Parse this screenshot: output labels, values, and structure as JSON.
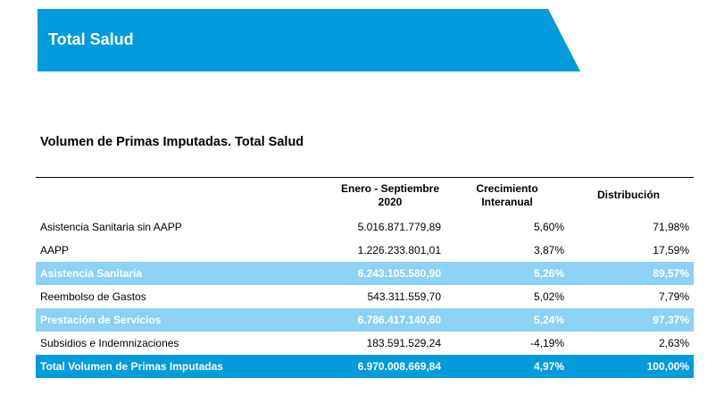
{
  "banner": {
    "title": "Total Salud",
    "color": "#009bdb"
  },
  "section_title": "Volumen de Primas Imputadas. Total Salud",
  "table": {
    "headers": {
      "period_line1": "Enero - Septiembre",
      "period_line2": "2020",
      "growth_line1": "Crecimiento",
      "growth_line2": "Interanual",
      "distribution": "Distribución"
    },
    "rows": [
      {
        "label": "Asistencia Sanitaria sin AAPP",
        "amount": "5.016.871.779,89",
        "growth": "5,60%",
        "distribution": "71,98%",
        "style": "normal"
      },
      {
        "label": "AAPP",
        "amount": "1.226.233.801,01",
        "growth": "3,87%",
        "distribution": "17,59%",
        "style": "normal"
      },
      {
        "label": "Asistencia Sanitaria",
        "amount": "6.243.105.580,90",
        "growth": "5,26%",
        "distribution": "89,57%",
        "style": "subtotal"
      },
      {
        "label": "Reembolso de Gastos",
        "amount": "543.311.559,70",
        "growth": "5,02%",
        "distribution": "7,79%",
        "style": "normal"
      },
      {
        "label": "Prestación de Servicios",
        "amount": "6.786.417.140,60",
        "growth": "5,24%",
        "distribution": "97,37%",
        "style": "subtotal"
      },
      {
        "label": "Subsidios e Indemnizaciones",
        "amount": "183.591.529,24",
        "growth": "-4,19%",
        "distribution": "2,63%",
        "style": "normal"
      },
      {
        "label": "Total Volumen de Primas Imputadas",
        "amount": "6.970.008.669,84",
        "growth": "4,97%",
        "distribution": "100,00%",
        "style": "total"
      }
    ]
  }
}
